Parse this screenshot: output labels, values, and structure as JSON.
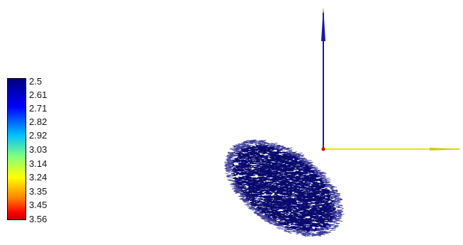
{
  "colorbar": {
    "labels": [
      "2.5",
      "2.61",
      "2.71",
      "2.82",
      "2.92",
      "3.03",
      "3.14",
      "3.24",
      "3.35",
      "3.45",
      "3.56"
    ],
    "min": 2.5,
    "max": 3.56,
    "colormap": "jet",
    "colors": [
      "#00007f",
      "#0000ff",
      "#00c0ff",
      "#7fff7f",
      "#ffff00",
      "#ff8000",
      "#ff0000"
    ]
  },
  "axes": {
    "vertical_color": "#1a1aa0",
    "horizontal_color": "#e6e600",
    "origin_color": "#cc0000"
  },
  "cloud": {
    "color": "#0a0a6e",
    "edge_color": "#3a3a9a"
  }
}
